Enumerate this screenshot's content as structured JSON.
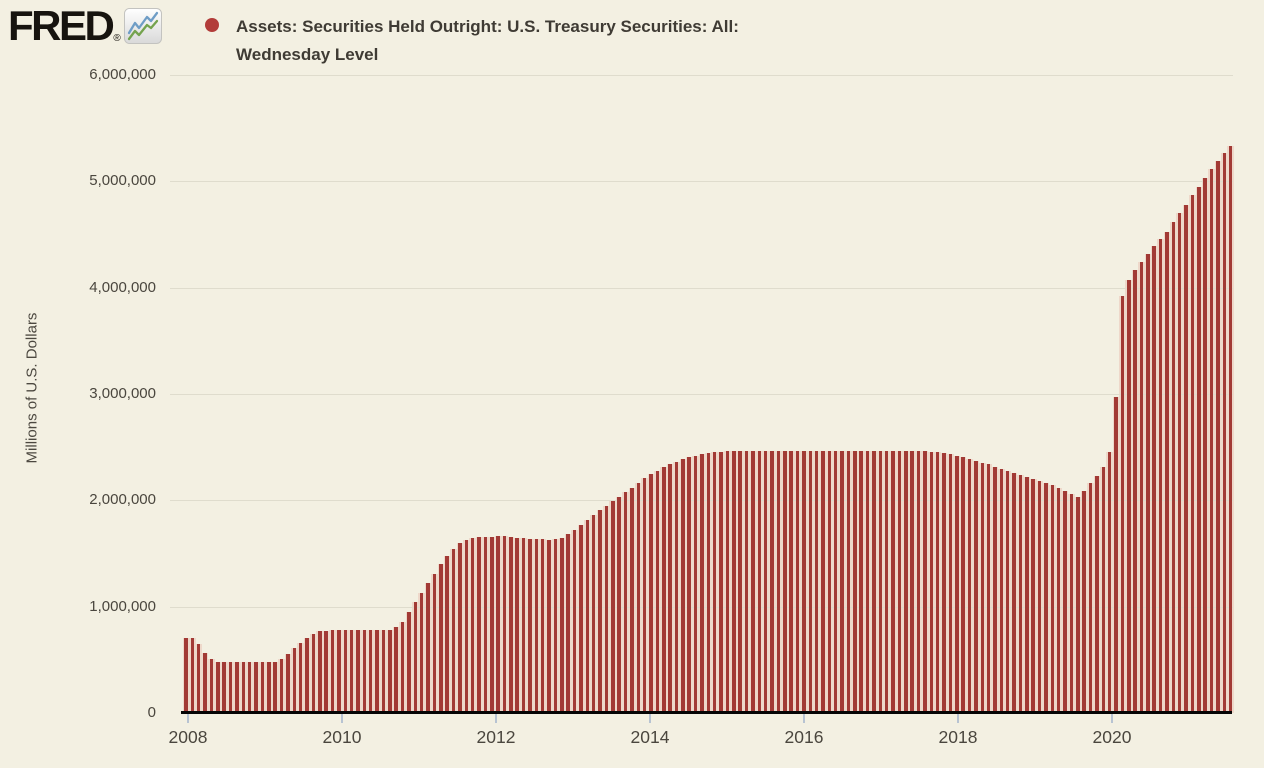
{
  "header": {
    "logo_text": "FRED",
    "registered_mark": "®",
    "legend_marker_color": "#b23c39",
    "title_line1": "Assets: Securities Held Outright: U.S. Treasury Securities: All:",
    "title_line2": "Wednesday Level"
  },
  "chart_data": {
    "type": "bar",
    "title": "Assets: Securities Held Outright: U.S. Treasury Securities: All: Wednesday Level",
    "ylabel": "Millions of U.S. Dollars",
    "xlabel": "",
    "ylim": [
      0,
      6000000
    ],
    "yticks": [
      0,
      1000000,
      2000000,
      3000000,
      4000000,
      5000000,
      6000000
    ],
    "ytick_labels": [
      "0",
      "1,000,000",
      "2,000,000",
      "3,000,000",
      "4,000,000",
      "5,000,000",
      "6,000,000"
    ],
    "xtick_years": [
      2008,
      2010,
      2012,
      2014,
      2016,
      2018,
      2020
    ],
    "grid": "horizontal",
    "legend_position": "top-left",
    "bar_color": "#a23a35",
    "bar_back_color": "#eed8ca",
    "values_unit": "millions of U.S. dollars",
    "x_start": "2008-01",
    "x_end": "2021-09",
    "values": [
      710000,
      708000,
      650000,
      565000,
      510000,
      480000,
      479000,
      479000,
      480000,
      476000,
      476000,
      476000,
      475000,
      475000,
      478000,
      505000,
      555000,
      610000,
      660000,
      705000,
      745000,
      769000,
      775000,
      776000,
      776000,
      776000,
      776000,
      776000,
      776000,
      776000,
      776000,
      777000,
      785000,
      810000,
      860000,
      950000,
      1040000,
      1130000,
      1220000,
      1310000,
      1400000,
      1480000,
      1545000,
      1600000,
      1630000,
      1645000,
      1652000,
      1655000,
      1655000,
      1660000,
      1660000,
      1655000,
      1650000,
      1645000,
      1640000,
      1635000,
      1632000,
      1630000,
      1632000,
      1645000,
      1680000,
      1725000,
      1770000,
      1815000,
      1860000,
      1905000,
      1950000,
      1990000,
      2030000,
      2075000,
      2120000,
      2165000,
      2208000,
      2245000,
      2280000,
      2312000,
      2340000,
      2365000,
      2388000,
      2405000,
      2420000,
      2434000,
      2445000,
      2453000,
      2458000,
      2460000,
      2460000,
      2460000,
      2460000,
      2460000,
      2460000,
      2460000,
      2460000,
      2460000,
      2460000,
      2460000,
      2461000,
      2461000,
      2461000,
      2461000,
      2461000,
      2461000,
      2461000,
      2461000,
      2461000,
      2461000,
      2461000,
      2461000,
      2463000,
      2464000,
      2465000,
      2465000,
      2465000,
      2465000,
      2465000,
      2466000,
      2463000,
      2458000,
      2452000,
      2445000,
      2435000,
      2420000,
      2405000,
      2390000,
      2372000,
      2355000,
      2337000,
      2318000,
      2298000,
      2278000,
      2258000,
      2238000,
      2220000,
      2200000,
      2180000,
      2160000,
      2140000,
      2115000,
      2085000,
      2055000,
      2030000,
      2090000,
      2160000,
      2230000,
      2310000,
      2450000,
      2970000,
      3920000,
      4075000,
      4170000,
      4240000,
      4315000,
      4390000,
      4460000,
      4525000,
      4615000,
      4700000,
      4780000,
      4870000,
      4950000,
      5035000,
      5115000,
      5195000,
      5270000,
      5330000
    ]
  }
}
